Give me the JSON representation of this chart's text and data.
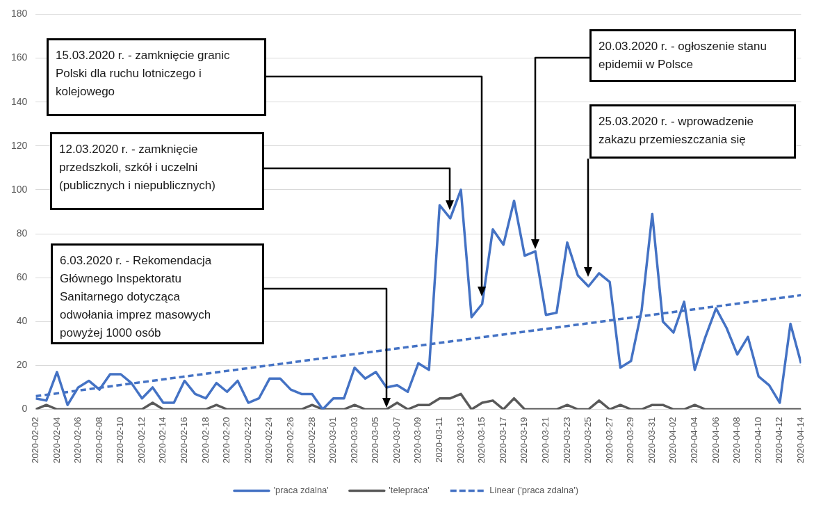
{
  "chart_data": {
    "type": "line",
    "x": [
      "2020-02-02",
      "2020-02-03",
      "2020-02-04",
      "2020-02-05",
      "2020-02-06",
      "2020-02-07",
      "2020-02-08",
      "2020-02-09",
      "2020-02-10",
      "2020-02-11",
      "2020-02-12",
      "2020-02-13",
      "2020-02-14",
      "2020-02-15",
      "2020-02-16",
      "2020-02-17",
      "2020-02-18",
      "2020-02-19",
      "2020-02-20",
      "2020-02-21",
      "2020-02-22",
      "2020-02-23",
      "2020-02-24",
      "2020-02-25",
      "2020-02-26",
      "2020-02-27",
      "2020-02-28",
      "2020-02-29",
      "2020-03-01",
      "2020-03-02",
      "2020-03-03",
      "2020-03-04",
      "2020-03-05",
      "2020-03-06",
      "2020-03-07",
      "2020-03-08",
      "2020-03-09",
      "2020-03-10",
      "2020-03-11",
      "2020-03-12",
      "2020-03-13",
      "2020-03-14",
      "2020-03-15",
      "2020-03-16",
      "2020-03-17",
      "2020-03-18",
      "2020-03-19",
      "2020-03-20",
      "2020-03-21",
      "2020-03-22",
      "2020-03-23",
      "2020-03-24",
      "2020-03-25",
      "2020-03-26",
      "2020-03-27",
      "2020-03-28",
      "2020-03-29",
      "2020-03-30",
      "2020-03-31",
      "2020-04-01",
      "2020-04-02",
      "2020-04-03",
      "2020-04-04",
      "2020-04-05",
      "2020-04-06",
      "2020-04-07",
      "2020-04-08",
      "2020-04-09",
      "2020-04-10",
      "2020-04-11",
      "2020-04-12",
      "2020-04-13",
      "2020-04-14"
    ],
    "series": [
      {
        "name": "'praca zdalna'",
        "color": "#4472c4",
        "values": [
          5,
          4,
          17,
          2,
          10,
          13,
          9,
          16,
          16,
          12,
          5,
          10,
          3,
          3,
          13,
          7,
          5,
          12,
          8,
          13,
          3,
          5,
          14,
          14,
          9,
          7,
          7,
          0,
          5,
          5,
          19,
          14,
          17,
          10,
          11,
          8,
          21,
          18,
          93,
          87,
          100,
          42,
          48,
          82,
          75,
          95,
          70,
          72,
          43,
          44,
          76,
          61,
          56,
          62,
          58,
          19,
          22,
          45,
          89,
          40,
          35,
          49,
          18,
          33,
          46,
          37,
          25,
          33,
          15,
          11,
          3,
          39,
          21
        ]
      },
      {
        "name": "'telepraca'",
        "color": "#595959",
        "values": [
          0,
          2,
          0,
          0,
          0,
          0,
          0,
          0,
          0,
          0,
          0,
          3,
          0,
          0,
          0,
          0,
          0,
          2,
          0,
          0,
          0,
          0,
          0,
          0,
          0,
          0,
          2,
          0,
          0,
          0,
          2,
          0,
          0,
          0,
          3,
          0,
          2,
          2,
          5,
          5,
          7,
          0,
          3,
          4,
          0,
          5,
          0,
          0,
          0,
          0,
          2,
          0,
          0,
          4,
          0,
          2,
          0,
          0,
          2,
          2,
          0,
          0,
          2,
          0,
          0,
          0,
          0,
          0,
          0,
          0,
          0,
          0,
          0
        ]
      },
      {
        "name": "Linear ('praca zdalna')",
        "type": "line",
        "color": "#4472c4",
        "line_style": "dashed",
        "x": [
          "2020-02-02",
          "2020-04-14"
        ],
        "values": [
          6,
          52
        ]
      }
    ],
    "xlim": [
      "2020-02-02",
      "2020-04-14"
    ],
    "xticks": [
      "2020-02-02",
      "2020-02-04",
      "2020-02-06",
      "2020-02-08",
      "2020-02-10",
      "2020-02-12",
      "2020-02-14",
      "2020-02-16",
      "2020-02-18",
      "2020-02-20",
      "2020-02-22",
      "2020-02-24",
      "2020-02-26",
      "2020-02-28",
      "2020-03-01",
      "2020-03-03",
      "2020-03-05",
      "2020-03-07",
      "2020-03-09",
      "2020-03-11",
      "2020-03-13",
      "2020-03-15",
      "2020-03-17",
      "2020-03-19",
      "2020-03-21",
      "2020-03-23",
      "2020-03-25",
      "2020-03-27",
      "2020-03-29",
      "2020-03-31",
      "2020-04-02",
      "2020-04-04",
      "2020-04-06",
      "2020-04-08",
      "2020-04-10",
      "2020-04-12",
      "2020-04-14"
    ],
    "ylim": [
      0,
      180
    ],
    "yticks": [
      0,
      20,
      40,
      60,
      80,
      100,
      120,
      140,
      160,
      180
    ],
    "grid": "y",
    "legend": "bottom",
    "marker": "none",
    "line_style": "solid",
    "annotations": [
      "6.03.2020 r. - Rekomendacja\nGłównego Inspektoratu\nSanitarnego dotycząca\nodwołania imprez masowych\npowyżej 1000 osób",
      "12.03.2020 r. - zamknięcie\nprzedszkoli, szkół i uczelni\n(publicznych i niepublicznych)",
      "15.03.2020 r. - zamknięcie granic\nPolski dla ruchu lotniczego i\nkolejowego",
      "20.03.2020 r. - ogłoszenie stanu\nepidemii w Polsce",
      "25.03.2020 r. - wprowadzenie\nzakazu przemieszczania się"
    ]
  }
}
